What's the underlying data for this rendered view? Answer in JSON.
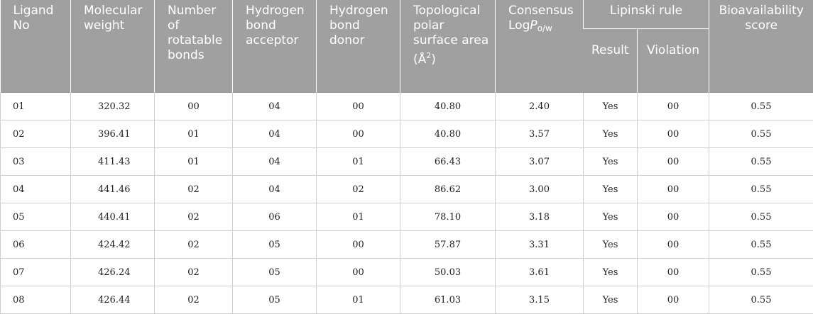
{
  "headers": {
    "ligand": "Ligand No",
    "mw": "Molecular weight",
    "rot": "Number of rotatable bonds",
    "hba": "Hydrogen bond acceptor",
    "hbd": "Hydrogen bond donor",
    "tpsa_prefix": "Topological polar surface area (Å",
    "tpsa_sup": "2",
    "tpsa_suffix": ")",
    "logp_prefix": "Consensus Log",
    "logp_p": "P",
    "logp_sub": "o/w",
    "lipinski": "Lipinski rule",
    "result": "Result",
    "violation": "Violation",
    "bioavail": "Bioavailability score"
  },
  "rows": [
    [
      "01",
      "320.32",
      "00",
      "04",
      "00",
      "40.80",
      "2.40",
      "Yes",
      "00",
      "0.55"
    ],
    [
      "02",
      "396.41",
      "01",
      "04",
      "00",
      "40.80",
      "3.57",
      "Yes",
      "00",
      "0.55"
    ],
    [
      "03",
      "411.43",
      "01",
      "04",
      "01",
      "66.43",
      "3.07",
      "Yes",
      "00",
      "0.55"
    ],
    [
      "04",
      "441.46",
      "02",
      "04",
      "02",
      "86.62",
      "3.00",
      "Yes",
      "00",
      "0.55"
    ],
    [
      "05",
      "440.41",
      "02",
      "06",
      "01",
      "78.10",
      "3.18",
      "Yes",
      "00",
      "0.55"
    ],
    [
      "06",
      "424.42",
      "02",
      "05",
      "00",
      "57.87",
      "3.31",
      "Yes",
      "00",
      "0.55"
    ],
    [
      "07",
      "426.24",
      "02",
      "05",
      "00",
      "50.03",
      "3.61",
      "Yes",
      "00",
      "0.55"
    ],
    [
      "08",
      "426.44",
      "02",
      "05",
      "01",
      "61.03",
      "3.15",
      "Yes",
      "00",
      "0.55"
    ]
  ]
}
